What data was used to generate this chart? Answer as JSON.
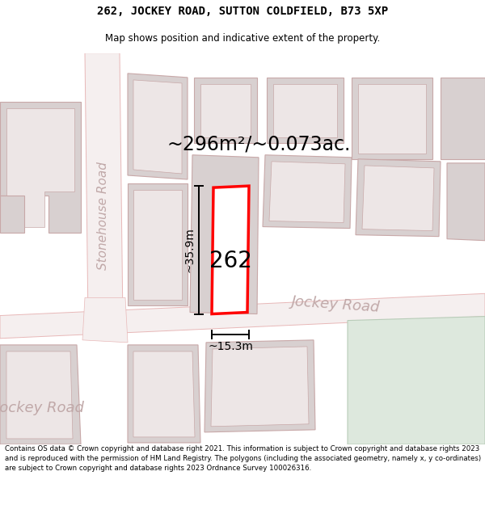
{
  "title_line1": "262, JOCKEY ROAD, SUTTON COLDFIELD, B73 5XP",
  "title_line2": "Map shows position and indicative extent of the property.",
  "footer_text": "Contains OS data © Crown copyright and database right 2021. This information is subject to Crown copyright and database rights 2023 and is reproduced with the permission of HM Land Registry. The polygons (including the associated geometry, namely x, y co-ordinates) are subject to Crown copyright and database rights 2023 Ordnance Survey 100026316.",
  "area_label": "~296m²/~0.073ac.",
  "property_number": "262",
  "dim_height": "~35.9m",
  "dim_width": "~15.3m",
  "road_label_lower": "Jockey Road",
  "road_label_upper": "Jockey Road",
  "road_label_side": "Stonehouse Road",
  "map_bg": "#f5efef",
  "road_outline": "#e8b8b8",
  "road_fill": "#f5efef",
  "building_fill": "#d8d0d0",
  "building_outline": "#c8a8a8",
  "highlight_fill": "#ffffff",
  "highlight_stroke": "#ff0000",
  "green_fill": "#dde8dd",
  "green_outline": "#b8ccb8",
  "road_text_color": "#c0a8a8",
  "dim_color": "#000000",
  "text_color": "#000000"
}
